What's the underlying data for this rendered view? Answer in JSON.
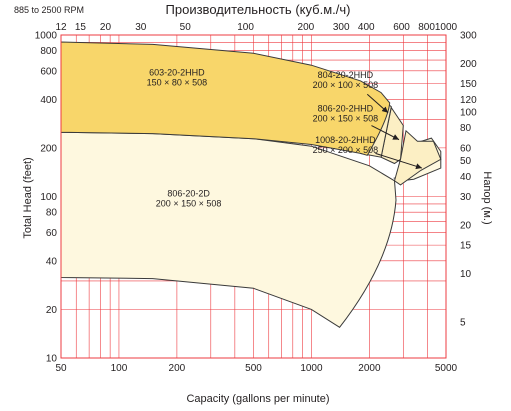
{
  "chart_data": {
    "type": "area",
    "title": "Производительность (куб.м./ч)",
    "subtitle": "885 to 2500 RPM",
    "xlabel": "Capacity (gallons per minute)",
    "ylabel": "Total Head (feet)",
    "y2label": "Напор (м.)",
    "x_scale": "log",
    "y_scale": "log",
    "xlim": [
      50,
      5000
    ],
    "ylim": [
      10,
      1000
    ],
    "grid": true,
    "x_ticks": [
      "50",
      "100",
      "200",
      "500",
      "1000",
      "2000",
      "5000"
    ],
    "x_tick_values": [
      50,
      100,
      200,
      500,
      1000,
      2000,
      5000
    ],
    "y_ticks": [
      "10",
      "20",
      "40",
      "60",
      "80",
      "100",
      "200",
      "400",
      "600",
      "800",
      "1000"
    ],
    "y_tick_values": [
      10,
      20,
      40,
      60,
      80,
      100,
      200,
      400,
      600,
      800,
      1000
    ],
    "top_ticks": [
      "12",
      "15",
      "20",
      "30",
      "50",
      "100",
      "200",
      "300",
      "400",
      "600",
      "800",
      "1000"
    ],
    "top_tick_values": [
      12,
      15,
      20,
      30,
      50,
      100,
      200,
      300,
      400,
      600,
      800,
      1000
    ],
    "right_ticks": [
      "300",
      "200",
      "150",
      "120",
      "100",
      "80",
      "60",
      "50",
      "40",
      "30",
      "20",
      "15",
      "10",
      "5"
    ],
    "right_tick_values": [
      300,
      200,
      150,
      120,
      100,
      80,
      60,
      50,
      40,
      30,
      20,
      15,
      10,
      5
    ],
    "colors": {
      "hhd_fill": "#f8d66a",
      "hhd_stroke": "#3a3a3a",
      "secondary_fill": "#fcefc4",
      "large_fill": "#fef8df",
      "grid": "#ee3b40",
      "arrow": "#231f20"
    },
    "regions": [
      {
        "name": "603-20-2HHD",
        "dims": "150 × 80 × 508",
        "top_curve": [
          [
            50,
            905
          ],
          [
            150,
            875
          ],
          [
            500,
            770
          ],
          [
            1000,
            650
          ],
          [
            1800,
            520
          ],
          [
            2300,
            440
          ],
          [
            2550,
            380
          ]
        ],
        "bottom_curve": [
          [
            50,
            250
          ],
          [
            150,
            245
          ],
          [
            500,
            228
          ],
          [
            1000,
            210
          ],
          [
            1800,
            185
          ]
        ]
      },
      {
        "name": "804-20-2HHD",
        "dims": "200 × 100 × 508",
        "boundary": [
          [
            1800,
            510
          ],
          [
            2600,
            360
          ],
          [
            2300,
            175
          ]
        ]
      },
      {
        "name": "806-20-2HHD",
        "dims": "200 × 150 × 508",
        "boundary": [
          [
            2600,
            355
          ],
          [
            3000,
            275
          ],
          [
            2900,
            170
          ]
        ]
      },
      {
        "name": "1008-20-2HHD",
        "dims": "250 × 200 × 508",
        "boundary": [
          [
            3100,
            255
          ],
          [
            3550,
            220
          ],
          [
            4300,
            220
          ],
          [
            3700,
            145
          ]
        ]
      },
      {
        "name": "806-20-2D",
        "dims": "200 × 150 × 508",
        "top_curve": [
          [
            50,
            250
          ],
          [
            150,
            245
          ],
          [
            500,
            228
          ],
          [
            1000,
            205
          ],
          [
            2000,
            155
          ],
          [
            2700,
            125
          ]
        ],
        "bottom_curve": [
          [
            50,
            31.5
          ],
          [
            150,
            31
          ],
          [
            500,
            27
          ],
          [
            1000,
            20
          ],
          [
            1400,
            15.5
          ]
        ]
      }
    ]
  }
}
